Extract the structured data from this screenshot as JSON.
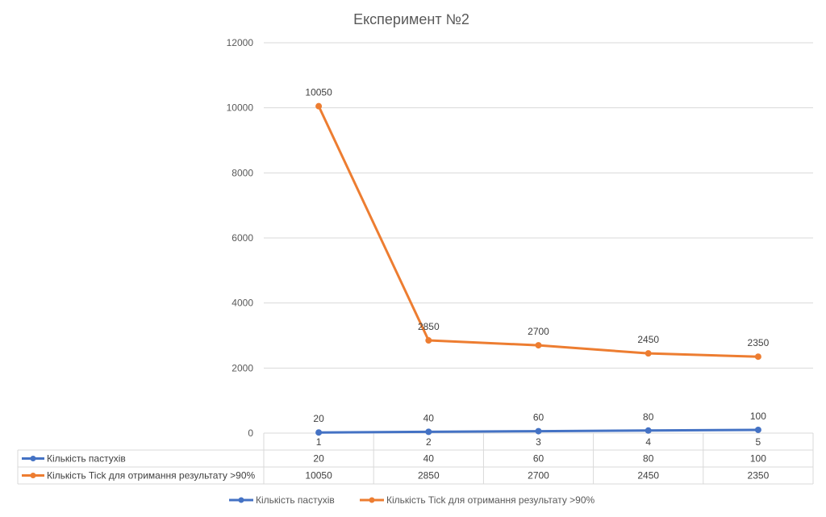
{
  "chart_data": {
    "type": "line",
    "title": "Експеримент №2",
    "categories": [
      "1",
      "2",
      "3",
      "4",
      "5"
    ],
    "series": [
      {
        "name": "Кількість пастухів",
        "values": [
          20,
          40,
          60,
          80,
          100
        ],
        "color": "#4472C4"
      },
      {
        "name": "Кількість Tick для отримання результату >90%",
        "values": [
          10050,
          2850,
          2700,
          2450,
          2350
        ],
        "color": "#ED7D31"
      }
    ],
    "yticks": [
      "0",
      "2000",
      "4000",
      "6000",
      "8000",
      "10000",
      "12000"
    ],
    "ylim": [
      0,
      12000
    ],
    "grid": true,
    "data_labels": true,
    "data_table": true,
    "legend": "bottom"
  }
}
